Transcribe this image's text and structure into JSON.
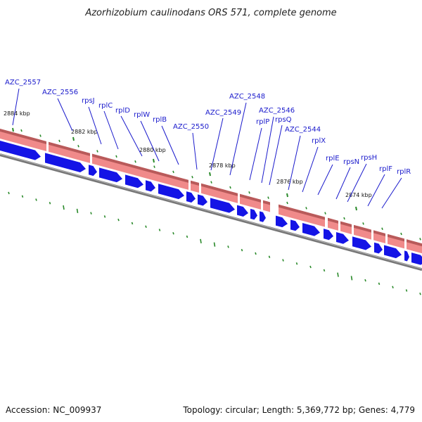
{
  "title": "Azorhizobium caulinodans ORS 571, complete genome",
  "footer": {
    "accession": "Accession: NC_009937",
    "summary": "Topology: circular; Length: 5,369,772 bp; Genes: 4,779"
  },
  "colors": {
    "gene_label": "#1a1acc",
    "forward_band": "#f08a8a",
    "forward_band_dark": "#b85a5a",
    "cds_arrow": "#1414e6",
    "backbone": "#777777",
    "gc_ticks": "#2a8a2a"
  },
  "kbp_ticks": [
    "2884 kbp",
    "2882 kbp",
    "2880 kbp",
    "2878 kbp",
    "2876 kbp",
    "2874 kbp"
  ],
  "genes": [
    "AZC_2557",
    "AZC_2556",
    "rpsJ",
    "rplC",
    "rplD",
    "rplW",
    "rplB",
    "AZC_2550",
    "AZC_2549",
    "AZC_2548",
    "rplP",
    "AZC_2546",
    "rpsQ",
    "AZC_2544",
    "rplX",
    "rplE",
    "rpsN",
    "rpsH",
    "rplF",
    "rplR"
  ]
}
